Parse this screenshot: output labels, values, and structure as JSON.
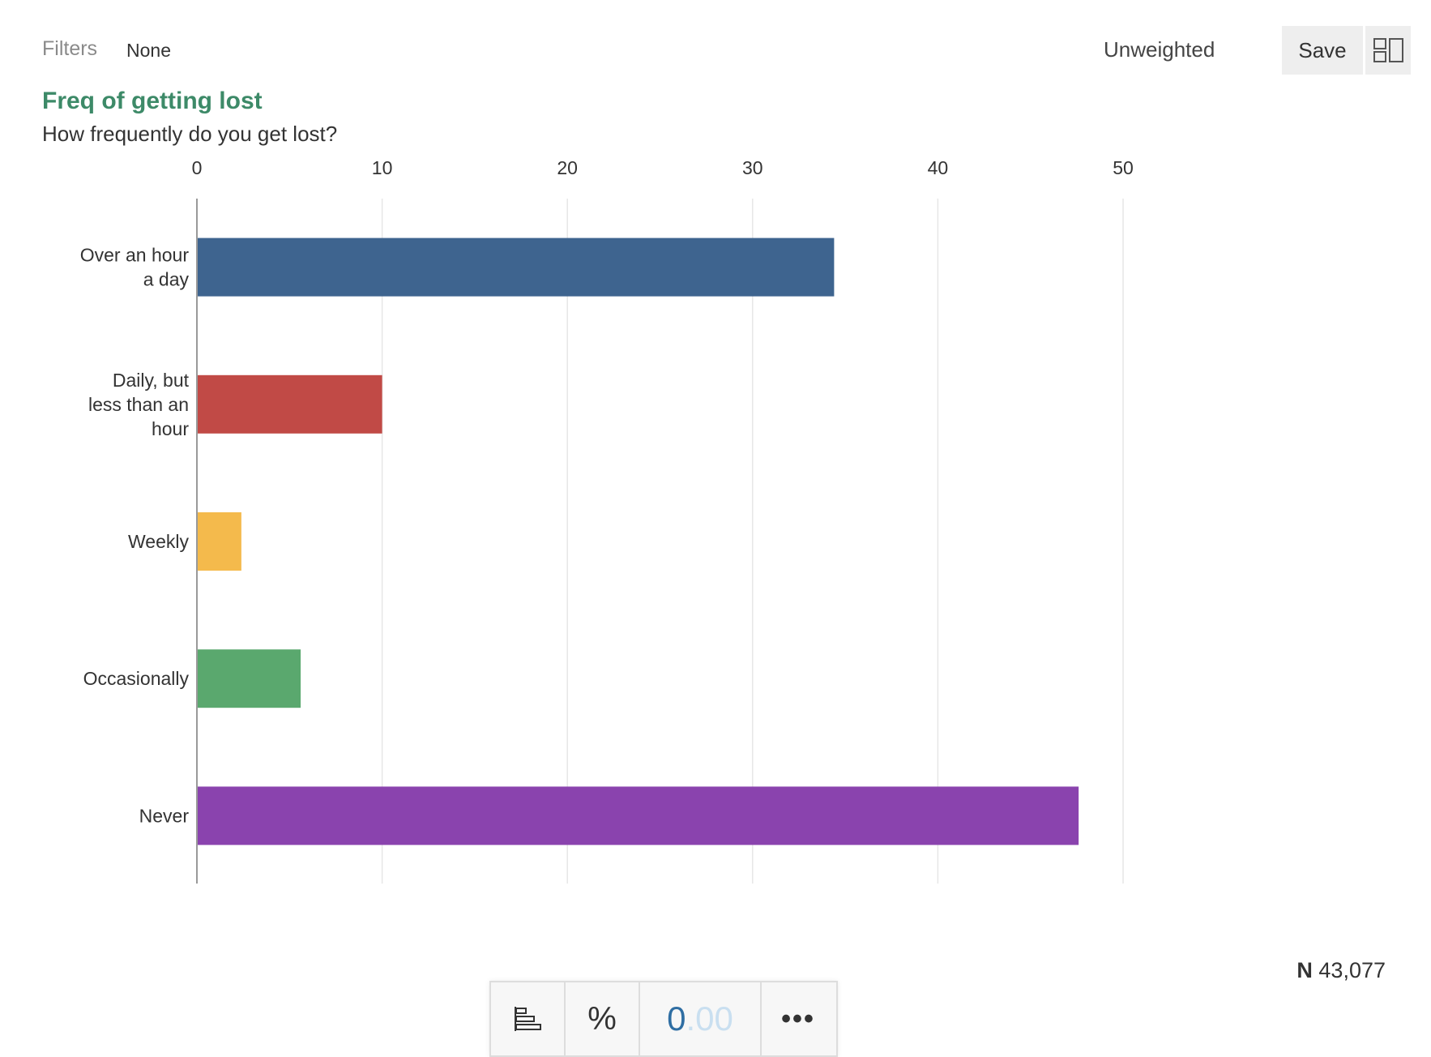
{
  "header": {
    "filters_label": "Filters",
    "filters_value": "None",
    "weight_label": "Unweighted",
    "save_label": "Save",
    "layout_icon": "layout-panels-icon"
  },
  "card": {
    "title": "Freq of getting lost",
    "subtitle": "How frequently do you get lost?"
  },
  "footer": {
    "n_label": "N",
    "n_value": "43,077"
  },
  "toolbar": {
    "chart_type_icon": "bar-chart-icon",
    "percent_label": "%",
    "decimals_int": "0",
    "decimals_frac": ".00",
    "more_label": "•••"
  },
  "chart_data": {
    "type": "bar",
    "orientation": "horizontal",
    "categories": [
      "Over an hour a day",
      "Daily, but less than an hour",
      "Weekly",
      "Occasionally",
      "Never"
    ],
    "category_lines": [
      [
        "Over an hour",
        "a day"
      ],
      [
        "Daily, but",
        "less than an",
        "hour"
      ],
      [
        "Weekly"
      ],
      [
        "Occasionally"
      ],
      [
        "Never"
      ]
    ],
    "values": [
      34.4,
      10.0,
      2.4,
      5.6,
      47.6
    ],
    "colors": [
      "#3e648f",
      "#c14a46",
      "#f4ba4c",
      "#5aa86e",
      "#8a43ae"
    ],
    "xlim": [
      0,
      50
    ],
    "x_ticks": [
      0,
      10,
      20,
      30,
      40,
      50
    ],
    "tick_labels": [
      "0",
      "10",
      "20",
      "30",
      "40",
      "50"
    ],
    "axis_position": "top",
    "grid": true,
    "xlabel": "",
    "ylabel": ""
  }
}
